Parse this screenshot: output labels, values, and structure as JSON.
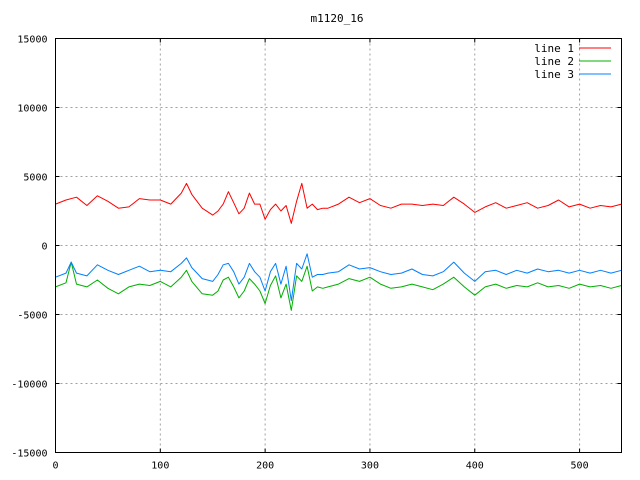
{
  "chart_data": {
    "type": "line",
    "title": "m1120_16",
    "xlabel": "",
    "ylabel": "",
    "xlim": [
      0,
      540
    ],
    "ylim": [
      -15000,
      15000
    ],
    "xticks": [
      0,
      100,
      200,
      300,
      400,
      500
    ],
    "yticks": [
      -15000,
      -10000,
      -5000,
      0,
      5000,
      10000,
      15000
    ],
    "grid": true,
    "legend_position": "top-right",
    "series": [
      {
        "name": "line 1",
        "color": "#ff0000",
        "x": [
          0,
          10,
          20,
          30,
          40,
          50,
          60,
          70,
          80,
          90,
          100,
          110,
          120,
          125,
          130,
          140,
          150,
          155,
          160,
          165,
          170,
          175,
          180,
          185,
          190,
          195,
          200,
          205,
          210,
          215,
          220,
          225,
          230,
          235,
          240,
          245,
          250,
          255,
          260,
          270,
          280,
          290,
          300,
          310,
          320,
          330,
          340,
          350,
          360,
          370,
          380,
          390,
          400,
          410,
          420,
          430,
          440,
          450,
          460,
          470,
          480,
          490,
          500,
          510,
          520,
          530,
          540
        ],
        "y": [
          3000,
          3300,
          3500,
          2900,
          3600,
          3200,
          2700,
          2800,
          3400,
          3300,
          3300,
          3000,
          3800,
          4500,
          3700,
          2700,
          2200,
          2500,
          3000,
          3900,
          3100,
          2300,
          2700,
          3800,
          3000,
          3000,
          1900,
          2600,
          3000,
          2500,
          2900,
          1600,
          3200,
          4500,
          2700,
          3000,
          2600,
          2700,
          2700,
          3000,
          3500,
          3100,
          3400,
          2900,
          2700,
          3000,
          3000,
          2900,
          3000,
          2900,
          3500,
          3000,
          2400,
          2800,
          3100,
          2700,
          2900,
          3100,
          2700,
          2900,
          3300,
          2800,
          3000,
          2700,
          2900,
          2800,
          3000
        ]
      },
      {
        "name": "line 2",
        "color": "#00b000",
        "x": [
          0,
          10,
          15,
          20,
          30,
          40,
          50,
          60,
          70,
          80,
          90,
          100,
          110,
          120,
          125,
          130,
          140,
          150,
          155,
          160,
          165,
          170,
          175,
          180,
          185,
          190,
          195,
          200,
          205,
          210,
          215,
          220,
          225,
          230,
          235,
          240,
          245,
          250,
          255,
          260,
          270,
          280,
          290,
          300,
          310,
          320,
          330,
          340,
          350,
          360,
          370,
          380,
          390,
          400,
          410,
          420,
          430,
          440,
          450,
          460,
          470,
          480,
          490,
          500,
          510,
          520,
          530,
          540
        ],
        "y": [
          -3000,
          -2700,
          -1200,
          -2800,
          -3000,
          -2500,
          -3100,
          -3500,
          -3000,
          -2800,
          -2900,
          -2600,
          -3000,
          -2300,
          -1800,
          -2600,
          -3500,
          -3600,
          -3300,
          -2500,
          -2300,
          -3000,
          -3800,
          -3300,
          -2400,
          -2800,
          -3300,
          -4200,
          -2900,
          -2200,
          -3800,
          -2800,
          -4700,
          -2200,
          -2600,
          -1500,
          -3300,
          -3000,
          -3100,
          -3000,
          -2800,
          -2400,
          -2600,
          -2300,
          -2800,
          -3100,
          -3000,
          -2800,
          -3000,
          -3200,
          -2800,
          -2300,
          -3000,
          -3600,
          -3000,
          -2800,
          -3100,
          -2900,
          -3000,
          -2700,
          -3000,
          -2900,
          -3100,
          -2800,
          -3000,
          -2900,
          -3100,
          -2900
        ]
      },
      {
        "name": "line 3",
        "color": "#0080ff",
        "x": [
          0,
          10,
          15,
          20,
          30,
          40,
          50,
          60,
          70,
          80,
          90,
          100,
          110,
          120,
          125,
          130,
          140,
          150,
          155,
          160,
          165,
          170,
          175,
          180,
          185,
          190,
          195,
          200,
          205,
          210,
          215,
          220,
          225,
          230,
          235,
          240,
          245,
          250,
          255,
          260,
          270,
          280,
          290,
          300,
          310,
          320,
          330,
          340,
          350,
          360,
          370,
          380,
          390,
          400,
          410,
          420,
          430,
          440,
          450,
          460,
          470,
          480,
          490,
          500,
          510,
          520,
          530,
          540
        ],
        "y": [
          -2300,
          -2000,
          -1200,
          -2000,
          -2200,
          -1400,
          -1800,
          -2100,
          -1800,
          -1500,
          -1900,
          -1800,
          -1900,
          -1300,
          -900,
          -1600,
          -2400,
          -2600,
          -2100,
          -1400,
          -1300,
          -1900,
          -2800,
          -2300,
          -1300,
          -1900,
          -2300,
          -3300,
          -1900,
          -1300,
          -2800,
          -1500,
          -4000,
          -1300,
          -1700,
          -600,
          -2300,
          -2100,
          -2100,
          -2000,
          -1900,
          -1400,
          -1700,
          -1600,
          -1900,
          -2100,
          -2000,
          -1700,
          -2100,
          -2200,
          -1900,
          -1200,
          -2000,
          -2600,
          -1900,
          -1800,
          -2100,
          -1800,
          -2000,
          -1700,
          -1900,
          -1800,
          -2000,
          -1800,
          -2000,
          -1800,
          -2000,
          -1800
        ]
      }
    ]
  }
}
